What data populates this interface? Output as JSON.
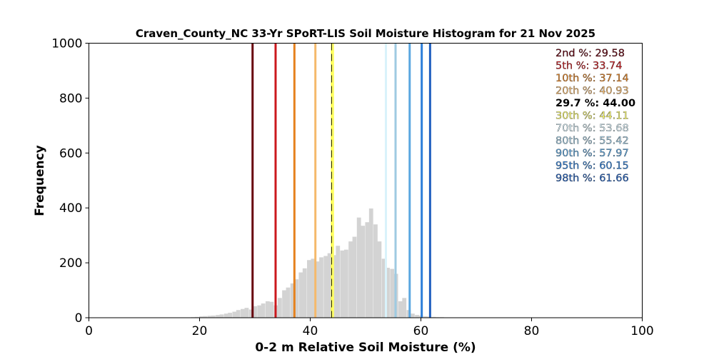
{
  "chart_data": {
    "type": "bar",
    "title": "Craven_County_NC 33-Yr SPoRT-LIS Soil Moisture Histogram for 21 Nov 2025",
    "xlabel": "0-2 m Relative Soil Moisture (%)",
    "ylabel": "Frequency",
    "xlim": [
      0,
      100
    ],
    "ylim": [
      0,
      1000
    ],
    "x_ticks": [
      0,
      20,
      40,
      60,
      80,
      100
    ],
    "y_ticks": [
      0,
      200,
      400,
      600,
      800,
      1000
    ],
    "grid": false,
    "bar_color": "#d3d3d3",
    "bin_width": 0.75,
    "bins": {
      "x": [
        18.0,
        18.8,
        19.5,
        20.3,
        21.0,
        21.8,
        22.5,
        23.3,
        24.0,
        24.8,
        25.5,
        26.3,
        27.0,
        27.8,
        28.5,
        29.3,
        30.0,
        30.8,
        31.5,
        32.3,
        33.0,
        33.8,
        34.5,
        35.3,
        36.0,
        36.8,
        37.5,
        38.3,
        39.0,
        39.8,
        40.5,
        41.3,
        42.0,
        42.8,
        43.5,
        44.3,
        45.0,
        45.8,
        46.5,
        47.3,
        48.0,
        48.8,
        49.5,
        50.3,
        51.0,
        51.8,
        52.5,
        53.3,
        54.0,
        54.8,
        55.5,
        56.3,
        57.0,
        57.8,
        58.5,
        59.3,
        60.0,
        60.8,
        61.5,
        62.3,
        63.0,
        63.8,
        64.5,
        65.3,
        66.0,
        66.8,
        67.5,
        68.3,
        69.0,
        69.8
      ],
      "values": [
        1,
        2,
        3,
        5,
        6,
        7,
        8,
        10,
        12,
        15,
        18,
        22,
        28,
        32,
        36,
        30,
        42,
        45,
        52,
        60,
        58,
        45,
        72,
        100,
        110,
        125,
        140,
        165,
        180,
        210,
        215,
        205,
        220,
        225,
        235,
        228,
        262,
        245,
        248,
        278,
        295,
        365,
        335,
        348,
        398,
        340,
        278,
        215,
        182,
        178,
        160,
        60,
        72,
        28,
        15,
        10,
        8,
        5,
        4,
        3,
        2,
        2,
        1,
        1,
        1,
        1,
        1,
        1,
        1,
        1
      ]
    },
    "percentiles": [
      {
        "label": "2nd %: 29.58",
        "value": 29.58,
        "color": "#67000d",
        "dashed": false
      },
      {
        "label": "5th %: 33.74",
        "value": 33.74,
        "color": "#cb181d",
        "dashed": false
      },
      {
        "label": "10th %: 37.14",
        "value": 37.14,
        "color": "#e6821e",
        "dashed": false
      },
      {
        "label": "20th %: 40.93",
        "value": 40.93,
        "color": "#f5b96b",
        "dashed": false
      },
      {
        "label": "29.7 %: 44.00",
        "value": 44.0,
        "color": "#000000",
        "dashed": true
      },
      {
        "label": "30th %: 44.11",
        "value": 44.11,
        "color": "#ffff66",
        "dashed": false
      },
      {
        "label": "70th %: 53.68",
        "value": 53.68,
        "color": "#d9f2fb",
        "dashed": false
      },
      {
        "label": "80th %: 55.42",
        "value": 55.42,
        "color": "#9ecae1",
        "dashed": false
      },
      {
        "label": "90th %: 57.97",
        "value": 57.97,
        "color": "#5aa6e0",
        "dashed": false
      },
      {
        "label": "95th %: 60.15",
        "value": 60.15,
        "color": "#2d7fd9",
        "dashed": false
      },
      {
        "label": "98th %: 61.66",
        "value": 61.66,
        "color": "#1f5fbf",
        "dashed": false
      }
    ],
    "percentile_list_placement": "top-right"
  }
}
